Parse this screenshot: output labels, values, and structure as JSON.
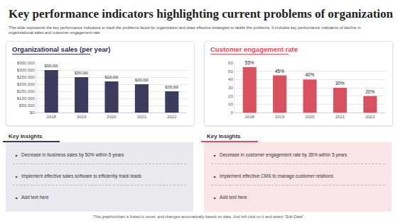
{
  "title": "Key performance indicators highlighting current problems of organization",
  "description": "This slide represents the key performance indicators to track the problems faced by organization and draw effective strategies to tackle the problems. It includes key performance indicators of decline in organizational sales and customer engagement rate.",
  "chart_data": [
    {
      "type": "bar",
      "title": "Organizational sales (per year)",
      "categories": [
        "2018",
        "2019",
        "2020",
        "2021",
        "2022"
      ],
      "values": [
        300000,
        250000,
        220000,
        200000,
        150000
      ],
      "value_labels": [
        "$300,000",
        "$250,000",
        "$220,000",
        "$200,000",
        "$150,000"
      ],
      "data_labels": true,
      "color": "#3b3b5e",
      "ylim": [
        0,
        350000
      ],
      "yticks": [
        {
          "value": 0,
          "label": "$0"
        },
        {
          "value": 50000,
          "label": "$50,000"
        },
        {
          "value": 100000,
          "label": "$100,000"
        },
        {
          "value": 150000,
          "label": "$150,000"
        },
        {
          "value": 200000,
          "label": "$200,000"
        },
        {
          "value": 250000,
          "label": "$250,000"
        },
        {
          "value": 300000,
          "label": "$300,000"
        },
        {
          "value": 350000,
          "label": "$350,000"
        }
      ],
      "grid": true
    },
    {
      "type": "bar",
      "title": "Customer engagement rate",
      "categories": [
        "2018",
        "2019",
        "2020",
        "2021",
        "2022"
      ],
      "values": [
        55,
        45,
        40,
        30,
        20
      ],
      "value_labels": [
        "55%",
        "45%",
        "40%",
        "30%",
        "20%"
      ],
      "data_labels": true,
      "color": "#d9505f",
      "ylim": [
        0,
        60
      ],
      "yticks": [
        0,
        10,
        20,
        30,
        40,
        50,
        60
      ],
      "grid": true
    }
  ],
  "insights": [
    {
      "heading": "Key Insights",
      "items": [
        "Decrease in business sales by 50% within 5 years",
        "Implement effective sales software to efficiently track leads",
        "Add text here"
      ]
    },
    {
      "heading": "Key Insights",
      "items": [
        "Decrease in customer engagement rate by 35% within 5 years",
        "Implement effective CMS to manage customer relations",
        "Add text here"
      ]
    }
  ],
  "footer": "This graphic/chart is linked to excel, and changes automatically based on data. Just left click on it and select \"Edit Data\"."
}
